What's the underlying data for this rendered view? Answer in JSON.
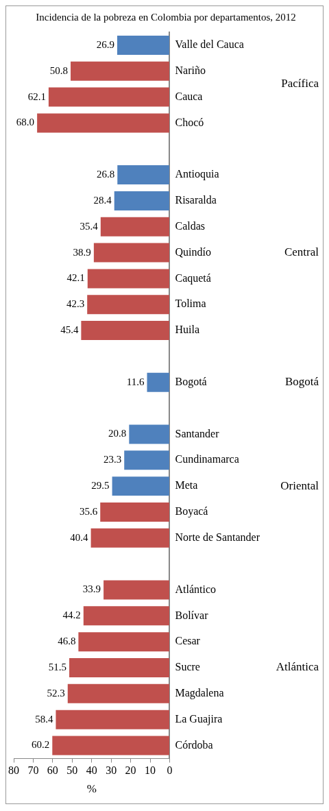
{
  "chart_data": {
    "type": "bar",
    "orientation": "horizontal",
    "title": "Incidencia de la pobreza en Colombia por departamentos, 2012",
    "xlabel": "%",
    "categories": [
      "Valle del Cauca",
      "Nariño",
      "Cauca",
      "Chocó",
      null,
      "Antioquia",
      "Risaralda",
      "Caldas",
      "Quindío",
      "Caquetá",
      "Tolima",
      "Huila",
      null,
      "Bogotá",
      null,
      "Santander",
      "Cundinamarca",
      "Meta",
      "Boyacá",
      "Norte de Santander",
      null,
      "Atlántico",
      "Bolívar",
      "Cesar",
      "Sucre",
      "Magdalena",
      "La Guajira",
      "Córdoba"
    ],
    "values": [
      26.9,
      50.8,
      62.1,
      68.0,
      null,
      26.8,
      28.4,
      35.4,
      38.9,
      42.1,
      42.3,
      45.4,
      null,
      11.6,
      null,
      20.8,
      23.3,
      29.5,
      35.6,
      40.4,
      null,
      33.9,
      44.2,
      46.8,
      51.5,
      52.3,
      58.4,
      60.2
    ],
    "value_labels": [
      "26.9",
      "50.8",
      "62.1",
      "68.0",
      null,
      "26.8",
      "28.4",
      "35.4",
      "38.9",
      "42.1",
      "42.3",
      "45.4",
      null,
      "11.6",
      null,
      "20.8",
      "23.3",
      "29.5",
      "35.6",
      "40.4",
      null,
      "33.9",
      "44.2",
      "46.8",
      "51.5",
      "52.3",
      "58.4",
      "60.2"
    ],
    "colors": [
      "#4f81bd",
      "#c0504d",
      "#c0504d",
      "#c0504d",
      "#4f81bd",
      "#4f81bd",
      "#4f81bd",
      "#c0504d",
      "#c0504d",
      "#c0504d",
      "#c0504d",
      "#c0504d",
      "#4f81bd",
      "#4f81bd",
      "#4f81bd",
      "#4f81bd",
      "#4f81bd",
      "#4f81bd",
      "#c0504d",
      "#c0504d",
      "#c0504d",
      "#c0504d",
      "#c0504d",
      "#c0504d",
      "#c0504d",
      "#c0504d",
      "#c0504d",
      "#c0504d"
    ],
    "xlim": [
      80,
      0
    ],
    "xticks": [
      80,
      70,
      60,
      50,
      40,
      30,
      20,
      10,
      0
    ],
    "grid": false,
    "legend": false,
    "annotations": [
      "Pacífica",
      "Central",
      "Bogotá",
      "Oriental",
      "Atlántica"
    ]
  }
}
